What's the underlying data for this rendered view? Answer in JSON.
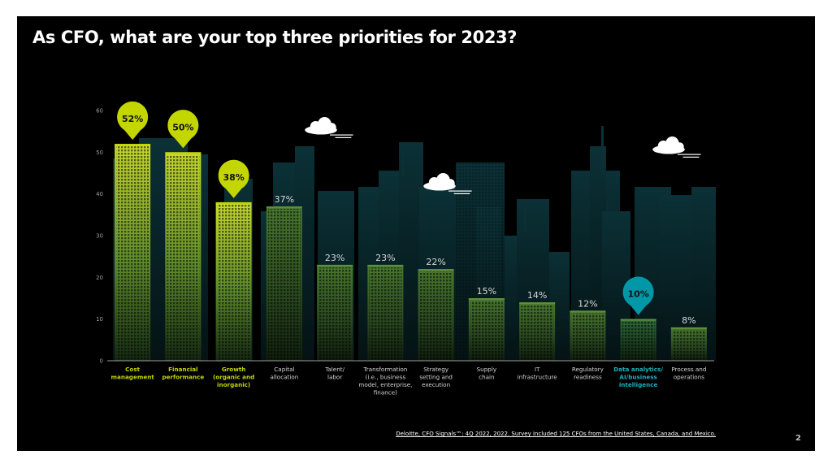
{
  "slide": {
    "title": "As CFO, what are your top three priorities for 2023?",
    "source": "Deloitte, CFO Signals™: 4Q 2022, 2022. Survey included 125 CFOs from the United States, Canada, and Mexico.",
    "page_number": "2"
  },
  "colors": {
    "background": "#000000",
    "highlight_green": "#c4d600",
    "highlight_teal": "#0097a9",
    "bar_green": "#3e6b2a",
    "axis": "#cccccc"
  },
  "chart_data": {
    "type": "bar",
    "title": "As CFO, what are your top three priorities for 2023?",
    "ylim": [
      0,
      60
    ],
    "yticks": [
      0,
      10,
      20,
      30,
      40,
      50,
      60
    ],
    "grid": false,
    "categories": [
      "Cost management",
      "Financial performance",
      "Growth (organic and inorganic)",
      "Capital allocation",
      "Talent/ labor",
      "Transformation (i.e., business model, enterprise, finance)",
      "Strategy setting and execution",
      "Supply chain",
      "IT infrastructure",
      "Regulatory readiness",
      "Data analytics/ AI/business intelligence",
      "Process and operations"
    ],
    "category_lines": [
      [
        "Cost",
        "management"
      ],
      [
        "Financial",
        "performance"
      ],
      [
        "Growth",
        "(organic and",
        "inorganic)"
      ],
      [
        "Capital",
        "allocation"
      ],
      [
        "Talent/",
        "labor"
      ],
      [
        "Transformation",
        "(i.e., business",
        "model, enterprise,",
        "finance)"
      ],
      [
        "Strategy",
        "setting and",
        "execution"
      ],
      [
        "Supply",
        "chain"
      ],
      [
        "IT",
        "infrastructure"
      ],
      [
        "Regulatory",
        "readiness"
      ],
      [
        "Data analytics/",
        "AI/business",
        "intelligence"
      ],
      [
        "Process and",
        "operations"
      ]
    ],
    "values": [
      52,
      50,
      38,
      37,
      23,
      23,
      22,
      15,
      14,
      12,
      10,
      8
    ],
    "value_labels": [
      "52%",
      "50%",
      "38%",
      "37%",
      "23%",
      "23%",
      "22%",
      "15%",
      "14%",
      "12%",
      "10%",
      "8%"
    ],
    "highlight": [
      "green",
      "green",
      "green",
      "none",
      "none",
      "none",
      "none",
      "none",
      "none",
      "none",
      "teal",
      "none"
    ]
  }
}
